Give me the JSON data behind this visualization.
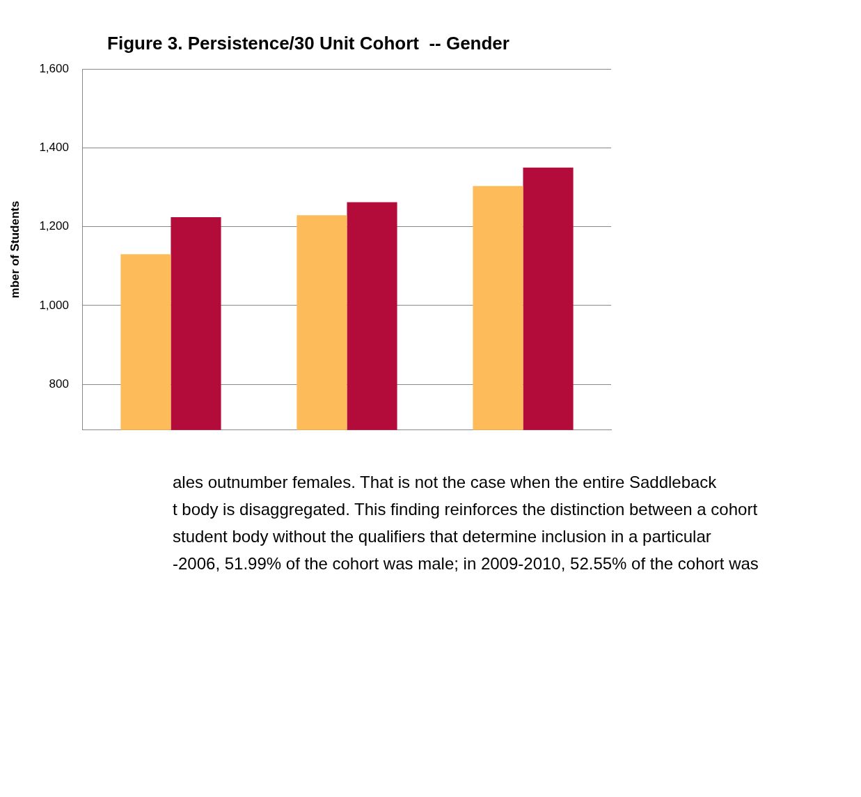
{
  "chart_data": {
    "type": "bar",
    "title": "Figure 3. Persistence/30 Unit Cohort  -- Gender",
    "ylabel": "mber of Students",
    "categories": [
      null,
      null,
      null
    ],
    "series": [
      {
        "color": "#fdbb5a",
        "values": [
          1130,
          1229,
          1303
        ]
      },
      {
        "color": "#b30b3a",
        "values": [
          1224,
          1262,
          1350
        ]
      }
    ],
    "ylim": [
      684,
      1600
    ],
    "yticks": [
      {
        "value": 800,
        "label": "800"
      },
      {
        "value": 1000,
        "label": "1,000"
      },
      {
        "value": 1200,
        "label": "1,200"
      },
      {
        "value": 1400,
        "label": "1,400"
      },
      {
        "value": 1600,
        "label": "1,600"
      }
    ],
    "grid": "y",
    "legend": false,
    "annotations": [
      "ales outnumber females. That is not the case when the entire Saddleback",
      "t body is disaggregated. This finding reinforces the distinction between a cohort",
      "student body without the qualifiers that determine inclusion in a particular",
      "-2006, 51.99% of the cohort was male; in 2009-2010, 52.55% of the cohort was"
    ]
  }
}
